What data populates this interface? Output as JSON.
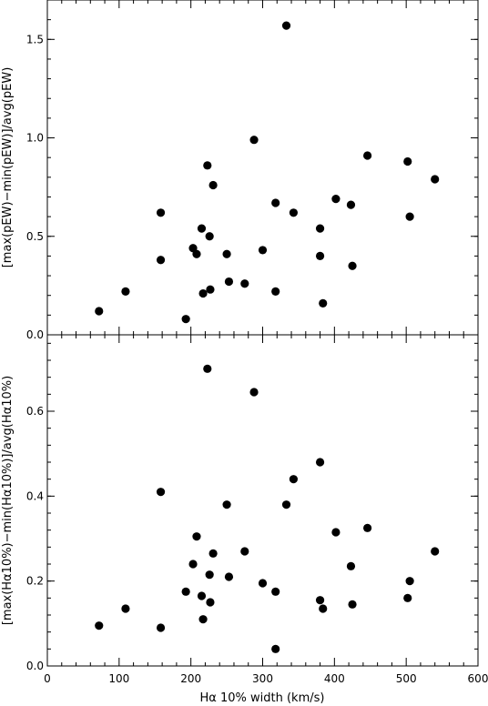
{
  "chart_data": [
    {
      "type": "scatter",
      "panel": "top",
      "ylabel": "[max(pEW)−min(pEW)]/avg(pEW)",
      "xlim": [
        0,
        600
      ],
      "ylim": [
        0,
        1.7
      ],
      "yticks": [
        0.0,
        0.5,
        1.0,
        1.5
      ],
      "ytick_labels": [
        "0.0",
        "0.5",
        "1.0",
        "1.5"
      ],
      "grid": false,
      "points": [
        {
          "x": 72,
          "y": 0.12
        },
        {
          "x": 109,
          "y": 0.22
        },
        {
          "x": 158,
          "y": 0.38
        },
        {
          "x": 158,
          "y": 0.62
        },
        {
          "x": 193,
          "y": 0.08
        },
        {
          "x": 203,
          "y": 0.44
        },
        {
          "x": 208,
          "y": 0.41
        },
        {
          "x": 215,
          "y": 0.54
        },
        {
          "x": 217,
          "y": 0.21
        },
        {
          "x": 223,
          "y": 0.86
        },
        {
          "x": 226,
          "y": 0.5
        },
        {
          "x": 227,
          "y": 0.23
        },
        {
          "x": 231,
          "y": 0.76
        },
        {
          "x": 250,
          "y": 0.41
        },
        {
          "x": 253,
          "y": 0.27
        },
        {
          "x": 275,
          "y": 0.26
        },
        {
          "x": 288,
          "y": 0.99
        },
        {
          "x": 300,
          "y": 0.43
        },
        {
          "x": 318,
          "y": 0.67
        },
        {
          "x": 318,
          "y": 0.22
        },
        {
          "x": 333,
          "y": 1.57
        },
        {
          "x": 343,
          "y": 0.62
        },
        {
          "x": 380,
          "y": 0.54
        },
        {
          "x": 380,
          "y": 0.4
        },
        {
          "x": 384,
          "y": 0.16
        },
        {
          "x": 402,
          "y": 0.69
        },
        {
          "x": 423,
          "y": 0.66
        },
        {
          "x": 425,
          "y": 0.35
        },
        {
          "x": 446,
          "y": 0.91
        },
        {
          "x": 502,
          "y": 0.88
        },
        {
          "x": 505,
          "y": 0.6
        },
        {
          "x": 540,
          "y": 0.79
        }
      ]
    },
    {
      "type": "scatter",
      "panel": "bottom",
      "xlabel": "Hα 10% width (km/s)",
      "ylabel": "[max(Hα10%)−min(Hα10%)]/avg(Hα10%)",
      "xlim": [
        0,
        600
      ],
      "ylim": [
        0,
        0.78
      ],
      "xticks": [
        0,
        100,
        200,
        300,
        400,
        500,
        600
      ],
      "xtick_labels": [
        "0",
        "100",
        "200",
        "300",
        "400",
        "500",
        "600"
      ],
      "yticks": [
        0.0,
        0.2,
        0.4,
        0.6
      ],
      "ytick_labels": [
        "0.0",
        "0.2",
        "0.4",
        "0.6"
      ],
      "grid": false,
      "points": [
        {
          "x": 72,
          "y": 0.095
        },
        {
          "x": 109,
          "y": 0.135
        },
        {
          "x": 158,
          "y": 0.09
        },
        {
          "x": 158,
          "y": 0.41
        },
        {
          "x": 193,
          "y": 0.175
        },
        {
          "x": 203,
          "y": 0.24
        },
        {
          "x": 208,
          "y": 0.305
        },
        {
          "x": 215,
          "y": 0.165
        },
        {
          "x": 217,
          "y": 0.11
        },
        {
          "x": 223,
          "y": 0.7
        },
        {
          "x": 226,
          "y": 0.215
        },
        {
          "x": 227,
          "y": 0.15
        },
        {
          "x": 231,
          "y": 0.265
        },
        {
          "x": 250,
          "y": 0.38
        },
        {
          "x": 253,
          "y": 0.21
        },
        {
          "x": 275,
          "y": 0.27
        },
        {
          "x": 288,
          "y": 0.645
        },
        {
          "x": 300,
          "y": 0.195
        },
        {
          "x": 318,
          "y": 0.04
        },
        {
          "x": 318,
          "y": 0.175
        },
        {
          "x": 333,
          "y": 0.38
        },
        {
          "x": 343,
          "y": 0.44
        },
        {
          "x": 380,
          "y": 0.48
        },
        {
          "x": 380,
          "y": 0.155
        },
        {
          "x": 384,
          "y": 0.135
        },
        {
          "x": 402,
          "y": 0.315
        },
        {
          "x": 423,
          "y": 0.235
        },
        {
          "x": 425,
          "y": 0.145
        },
        {
          "x": 446,
          "y": 0.325
        },
        {
          "x": 502,
          "y": 0.16
        },
        {
          "x": 505,
          "y": 0.2
        },
        {
          "x": 540,
          "y": 0.27
        }
      ]
    }
  ],
  "colors": {
    "marker": "#000000",
    "axis": "#000000",
    "background": "#ffffff"
  }
}
